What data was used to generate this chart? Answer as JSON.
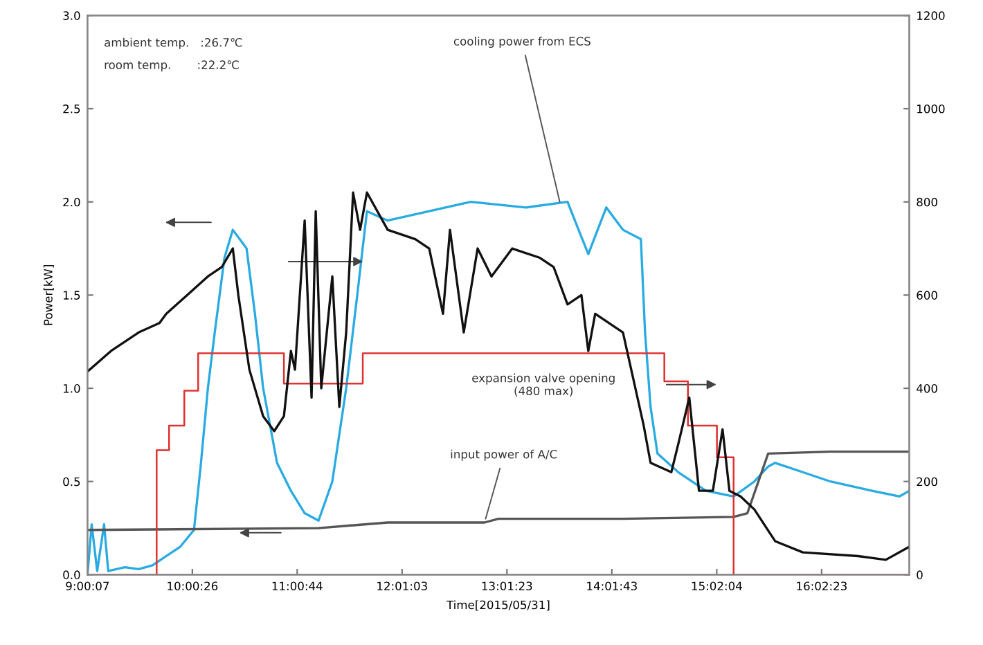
{
  "chart_data": {
    "type": "line",
    "xlabel": "Time[2015/05/31]",
    "ylabel": "Power[kW]",
    "xlim": [
      9.00194,
      16.88
    ],
    "xticks": [
      {
        "value": 9.00194,
        "label": "9:00:07"
      },
      {
        "value": 10.00722,
        "label": "10:00:26"
      },
      {
        "value": 11.01222,
        "label": "11:00:44"
      },
      {
        "value": 12.0175,
        "label": "12:01:03"
      },
      {
        "value": 13.02306,
        "label": "13:01:23"
      },
      {
        "value": 14.02861,
        "label": "14:01:43"
      },
      {
        "value": 15.03444,
        "label": "15:02:04"
      },
      {
        "value": 16.03972,
        "label": "16:02:23"
      }
    ],
    "ylim": [
      0,
      3
    ],
    "yticks": [
      {
        "value": 0,
        "label": "0.0"
      },
      {
        "value": 0.5,
        "label": "0.5"
      },
      {
        "value": 1,
        "label": "1.0"
      },
      {
        "value": 1.5,
        "label": "1.5"
      },
      {
        "value": 2,
        "label": "2.0"
      },
      {
        "value": 2.5,
        "label": "2.5"
      },
      {
        "value": 3,
        "label": "3.0"
      }
    ],
    "y2lim": [
      0,
      1200
    ],
    "y2ticks": [
      0,
      200,
      400,
      600,
      800,
      1000,
      1200
    ],
    "marker": "none",
    "line_style": "solid",
    "series": [
      {
        "type": "step",
        "axis": "y2",
        "color": "#e03030",
        "x": [
          9.002,
          9.665,
          9.784,
          9.93,
          10.063,
          10.885,
          11.641,
          14.532,
          14.758,
          15.036,
          15.196,
          16.88
        ],
        "values": [
          0,
          267,
          320,
          395,
          475,
          410,
          475,
          415,
          320,
          252,
          0,
          0
        ]
      },
      {
        "color": "#29abe2",
        "x": [
          9.002,
          9.042,
          9.095,
          9.161,
          9.201,
          9.36,
          9.493,
          9.625,
          9.758,
          9.891,
          10.023,
          10.09,
          10.156,
          10.222,
          10.315,
          10.395,
          10.461,
          10.527,
          10.607,
          10.686,
          10.819,
          10.952,
          11.084,
          11.217,
          11.349,
          11.482,
          11.588,
          11.681,
          11.88,
          12.278,
          12.676,
          13.206,
          13.604,
          13.71,
          13.803,
          13.975,
          14.135,
          14.307,
          14.347,
          14.4,
          14.466,
          14.665,
          14.93,
          15.196,
          15.395,
          15.527,
          15.594,
          15.859,
          16.124,
          16.522,
          16.787,
          16.88
        ],
        "values": [
          0.0,
          0.27,
          0.02,
          0.27,
          0.02,
          0.04,
          0.03,
          0.05,
          0.1,
          0.15,
          0.24,
          0.6,
          1.0,
          1.3,
          1.7,
          1.85,
          1.8,
          1.75,
          1.4,
          1.0,
          0.6,
          0.45,
          0.33,
          0.29,
          0.5,
          1.0,
          1.5,
          1.95,
          1.9,
          1.95,
          2.0,
          1.97,
          2.0,
          1.85,
          1.72,
          1.97,
          1.85,
          1.8,
          1.3,
          0.9,
          0.65,
          0.55,
          0.45,
          0.42,
          0.5,
          0.58,
          0.6,
          0.55,
          0.5,
          0.45,
          0.42,
          0.45
        ]
      },
      {
        "color": "#555555",
        "x": [
          9.002,
          11.217,
          11.88,
          12.808,
          12.941,
          14.135,
          15.196,
          15.328,
          15.527,
          16.124,
          16.88
        ],
        "values": [
          0.24,
          0.25,
          0.28,
          0.28,
          0.3,
          0.3,
          0.31,
          0.33,
          0.65,
          0.66,
          0.66
        ]
      },
      {
        "axis": "y2",
        "color": "#111111",
        "x": [
          9.002,
          9.227,
          9.493,
          9.692,
          9.758,
          9.957,
          10.156,
          10.289,
          10.395,
          10.448,
          10.554,
          10.686,
          10.792,
          10.885,
          10.952,
          10.991,
          11.084,
          11.15,
          11.19,
          11.243,
          11.349,
          11.416,
          11.482,
          11.548,
          11.615,
          11.681,
          11.88,
          12.145,
          12.278,
          12.41,
          12.477,
          12.609,
          12.742,
          12.875,
          13.074,
          13.339,
          13.471,
          13.604,
          13.737,
          13.803,
          13.869,
          14.002,
          14.135,
          14.334,
          14.4,
          14.599,
          14.665,
          14.771,
          14.864,
          14.997,
          15.09,
          15.156,
          15.262,
          15.395,
          15.594,
          15.859,
          16.389,
          16.655,
          16.88
        ],
        "values": [
          436,
          480,
          520,
          540,
          560,
          600,
          640,
          660,
          700,
          600,
          440,
          340,
          308,
          340,
          480,
          440,
          760,
          380,
          780,
          400,
          640,
          360,
          520,
          820,
          740,
          820,
          740,
          720,
          700,
          560,
          740,
          520,
          700,
          640,
          700,
          680,
          660,
          580,
          600,
          480,
          560,
          540,
          520,
          320,
          240,
          220,
          280,
          380,
          180,
          180,
          312,
          180,
          168,
          140,
          72,
          48,
          40,
          32,
          60
        ]
      }
    ],
    "annotations": [
      "ambient temp.   :26.7℃",
      "room temp.       :22.2℃",
      "expansion valve opening\n(480 max)",
      {
        "text": "cooling power from ECS",
        "x": 13.538,
        "y": 1.98
      },
      {
        "text": "input power of A/C",
        "x": 12.808,
        "y": 0.28
      }
    ]
  }
}
